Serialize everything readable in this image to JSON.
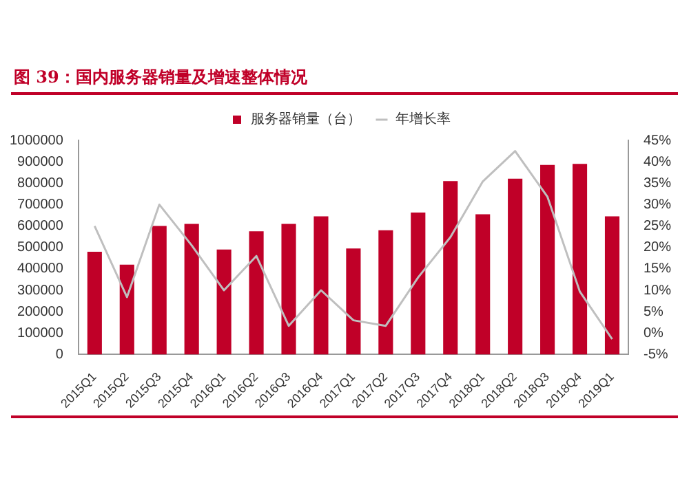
{
  "chart_data": {
    "type": "bar",
    "title": "图 39：国内服务器销量及增速整体情况",
    "categories": [
      "2015Q1",
      "2015Q2",
      "2015Q3",
      "2015Q4",
      "2016Q1",
      "2016Q2",
      "2016Q3",
      "2016Q4",
      "2017Q1",
      "2017Q2",
      "2017Q3",
      "2017Q4",
      "2018Q1",
      "2018Q2",
      "2018Q3",
      "2018Q4",
      "2019Q1"
    ],
    "series": [
      {
        "name": "服务器销量（台）",
        "color": "#c00028",
        "values": [
          480000,
          420000,
          600000,
          610000,
          490000,
          575000,
          610000,
          645000,
          495000,
          580000,
          663000,
          810000,
          655000,
          821000,
          885000,
          890000,
          645000
        ]
      },
      {
        "name": "年增长率",
        "type": "line",
        "axis": "y2",
        "color": "#bfbfbf",
        "values": [
          25,
          8.4,
          30,
          20.5,
          10,
          18,
          1.7,
          10,
          3,
          1.7,
          13,
          22.4,
          35.4,
          42.5,
          31.8,
          9.7,
          -1.4
        ]
      }
    ],
    "ylim": [
      0,
      1000000
    ],
    "yticks": [
      0,
      100000,
      200000,
      300000,
      400000,
      500000,
      600000,
      700000,
      800000,
      900000,
      1000000
    ],
    "y2lim": [
      -5,
      45
    ],
    "y2ticks": [
      {
        "value": -5,
        "label": "-5%"
      },
      {
        "value": 0,
        "label": "0%"
      },
      {
        "value": 5,
        "label": "5%"
      },
      {
        "value": 10,
        "label": "10%"
      },
      {
        "value": 15,
        "label": "15%"
      },
      {
        "value": 20,
        "label": "20%"
      },
      {
        "value": 25,
        "label": "25%"
      },
      {
        "value": 30,
        "label": "30%"
      },
      {
        "value": 35,
        "label": "35%"
      },
      {
        "value": 40,
        "label": "40%"
      },
      {
        "value": 45,
        "label": "45%"
      }
    ],
    "grid": false,
    "legend": "top",
    "marker": "none",
    "line_style": "solid"
  }
}
